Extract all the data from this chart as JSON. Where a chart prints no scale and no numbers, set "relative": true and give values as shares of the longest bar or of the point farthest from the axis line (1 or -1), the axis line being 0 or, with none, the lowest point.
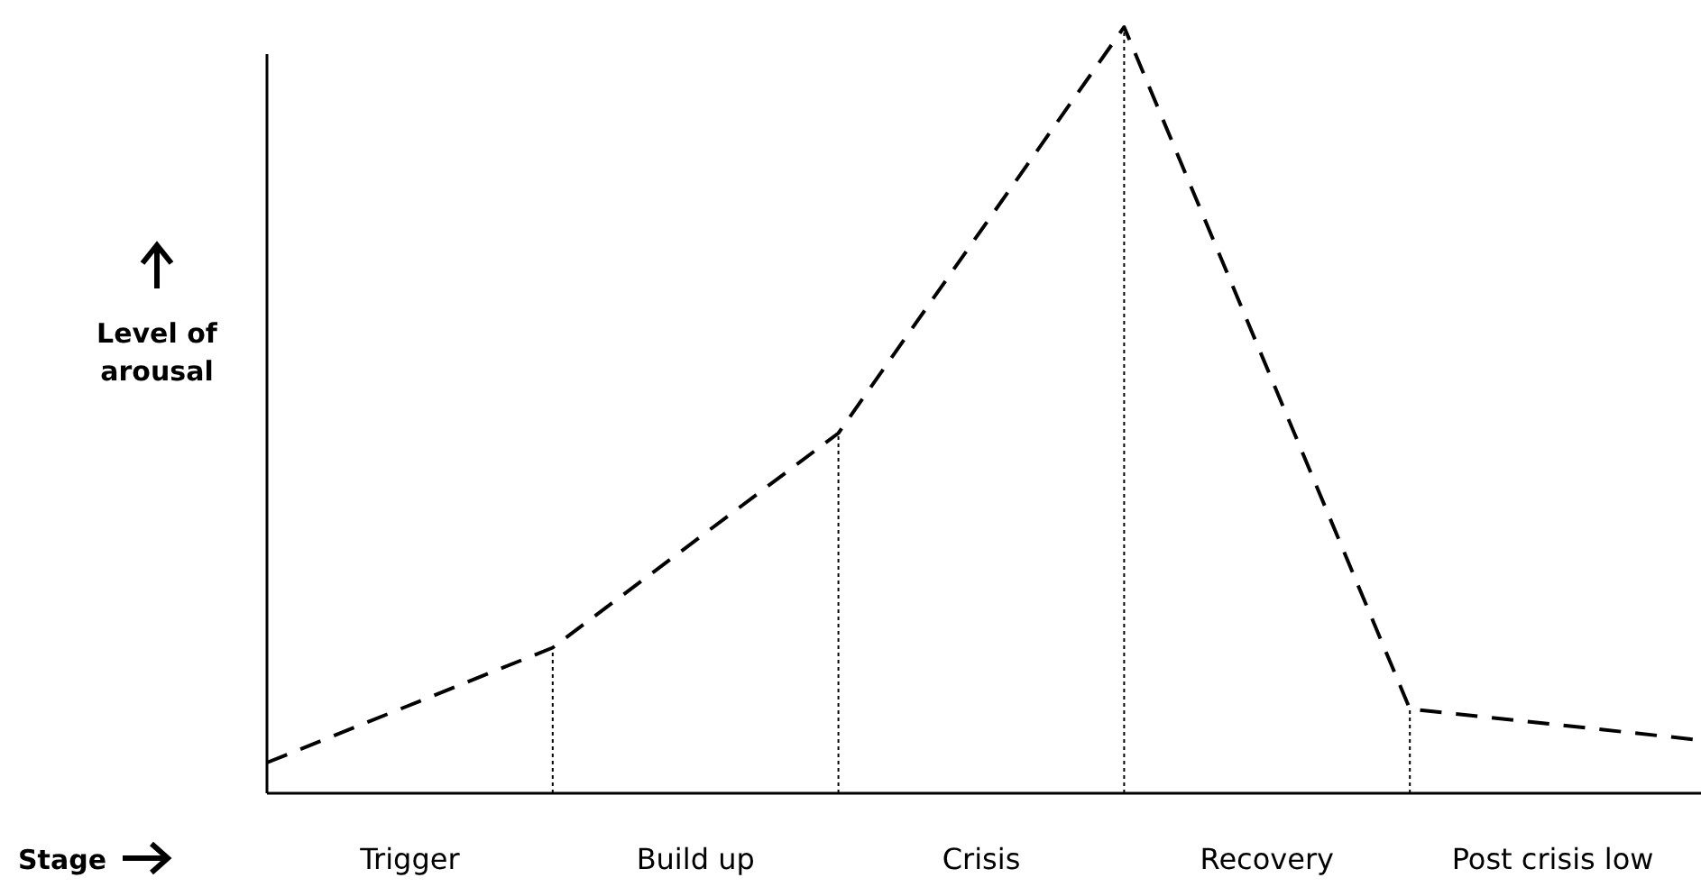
{
  "chart_data": {
    "type": "line",
    "relative": true,
    "ylabel": "Level of arousal",
    "categories": [
      null,
      null,
      null,
      null,
      null,
      null
    ],
    "annotations": [
      "Stage",
      "Trigger",
      "Build up",
      "Crisis",
      "Recovery",
      "Post crisis low"
    ],
    "series": [
      {
        "color": "#000000",
        "values": [
          0.04,
          0.19,
          0.47,
          1,
          0.11,
          0.07
        ]
      }
    ],
    "line_style": "dashed",
    "marker": "none"
  }
}
